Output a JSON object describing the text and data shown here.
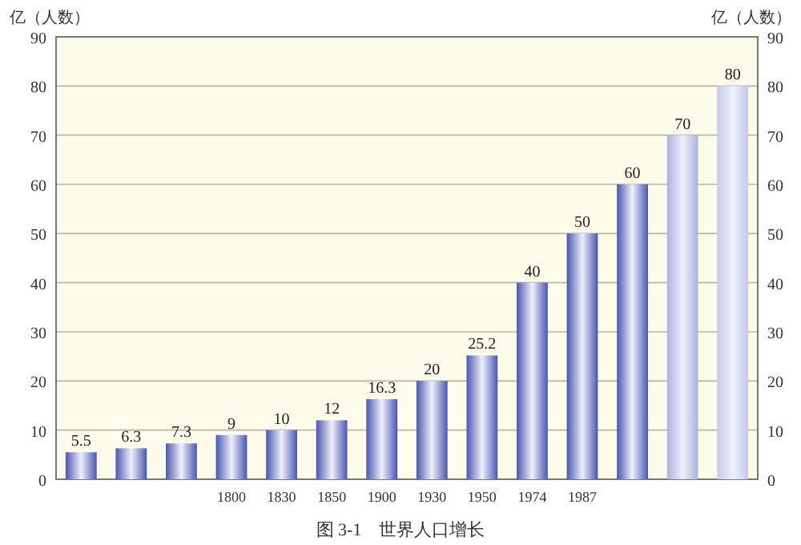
{
  "chart_data": {
    "type": "bar",
    "title": "图 3-1　世界人口增长",
    "ylabel": "亿（人数）",
    "y2label": "亿（人数）",
    "categories": [
      null,
      null,
      null,
      "1800",
      "1830",
      "1850",
      "1900",
      "1930",
      "1950",
      "1974",
      "1987",
      null,
      null,
      null
    ],
    "values": [
      5.5,
      6.3,
      7.3,
      9,
      10,
      12,
      16.3,
      20,
      25.2,
      40,
      50,
      60,
      70,
      80
    ],
    "colors": [
      "#4a56b0",
      "#4a56b0",
      "#4a56b0",
      "#4a56b0",
      "#4a56b0",
      "#4a56b0",
      "#4a56b0",
      "#4a56b0",
      "#4a56b0",
      "#4a56b0",
      "#4a56b0",
      "#4a56b0",
      "#aab3df",
      "#c4cbea"
    ],
    "ylim": [
      0,
      90
    ],
    "yticks": [
      0,
      10,
      20,
      30,
      40,
      50,
      60,
      70,
      80,
      90
    ],
    "y2lim": [
      0,
      90
    ],
    "y2ticks": [
      0,
      10,
      20,
      30,
      40,
      50,
      60,
      70,
      80,
      90
    ],
    "grid": "y",
    "data_labels": true
  }
}
